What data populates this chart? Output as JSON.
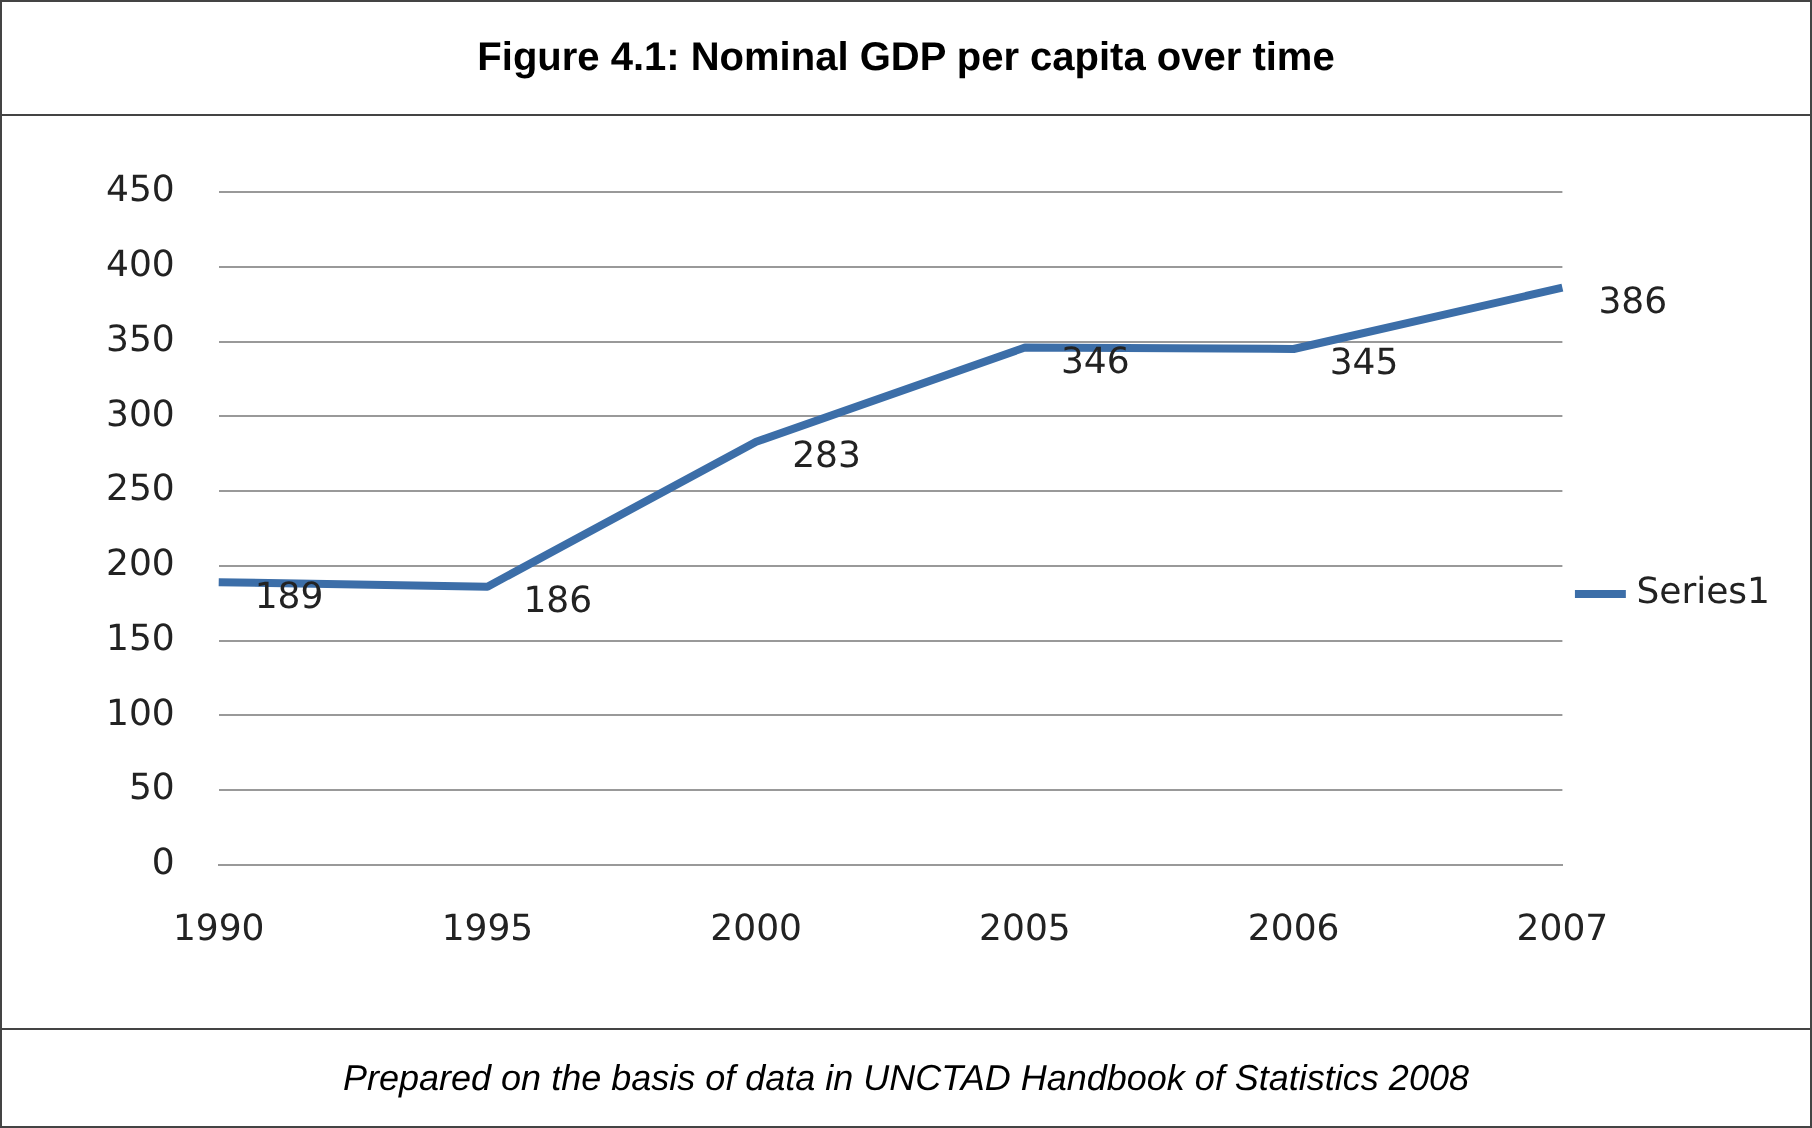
{
  "chart_data": {
    "type": "line",
    "title": "Figure 4.1: Nominal GDP per capita over time",
    "categories": [
      "1990",
      "1995",
      "2000",
      "2005",
      "2006",
      "2007"
    ],
    "series": [
      {
        "name": "Series1",
        "color": "#3c6ea8",
        "values": [
          189,
          186,
          283,
          346,
          345,
          386
        ]
      }
    ],
    "ylim": [
      0,
      450
    ],
    "yticks": [
      0,
      50,
      100,
      150,
      200,
      250,
      300,
      350,
      400,
      450
    ],
    "grid": "y",
    "legend": "right",
    "data_labels": true,
    "marker": "none",
    "line_style": "solid",
    "annotations": [
      "Prepared on the basis of data in UNCTAD Handbook of Statistics 2008"
    ]
  }
}
